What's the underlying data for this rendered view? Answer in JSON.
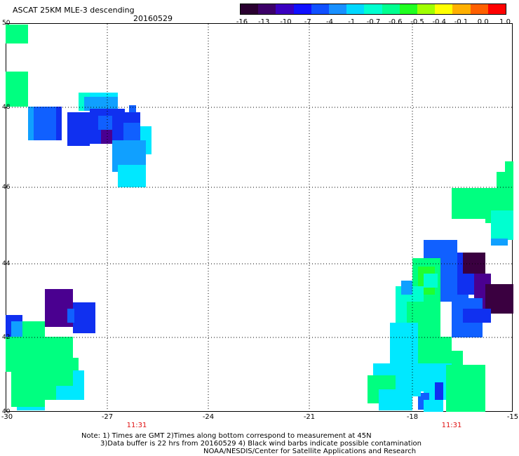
{
  "header": {
    "title": "ASCAT 25KM MLE-3 descending",
    "date": "20160529"
  },
  "colorbar": {
    "labels": [
      "-16",
      "-13",
      "-10",
      "-7",
      "-4",
      "-1",
      "-0.7",
      "-0.6",
      "-0.5",
      "-0.4",
      "-0.1",
      "0.0",
      "1.0"
    ],
    "colors": [
      "#2a0030",
      "#3c0068",
      "#3a00c0",
      "#1010ff",
      "#1050ff",
      "#1890ff",
      "#00d8ff",
      "#00ffd0",
      "#00ff90",
      "#20ff20",
      "#a0ff00",
      "#ffff00",
      "#ffb000",
      "#ff6000",
      "#ff0000"
    ]
  },
  "axes": {
    "lat_labels": [
      "40",
      "42",
      "44",
      "46",
      "48",
      "50"
    ],
    "lon_labels": [
      "-30",
      "-27",
      "-24",
      "-21",
      "-18",
      "-15"
    ],
    "time_labels": [
      "11:31",
      "11:31"
    ]
  },
  "notes": {
    "line1": "Note: 1) Times are GMT 2)Times along bottom correspond to measurement at 45N",
    "line2": "3)Data buffer is 22 hrs from 20160529 4) Black wind barbs indicate possible contamination",
    "line3": "NOAA/NESDIS/Center for Satellite Applications and Research"
  },
  "palette": {
    "dark_purple": "#3a0040",
    "indigo": "#4a0090",
    "blue": "#1030f0",
    "mid_blue": "#1060ff",
    "light_blue": "#10a0ff",
    "cyan": "#00e8ff",
    "aqua": "#00ffd0",
    "spring": "#00ff80",
    "green": "#20ff30"
  }
}
